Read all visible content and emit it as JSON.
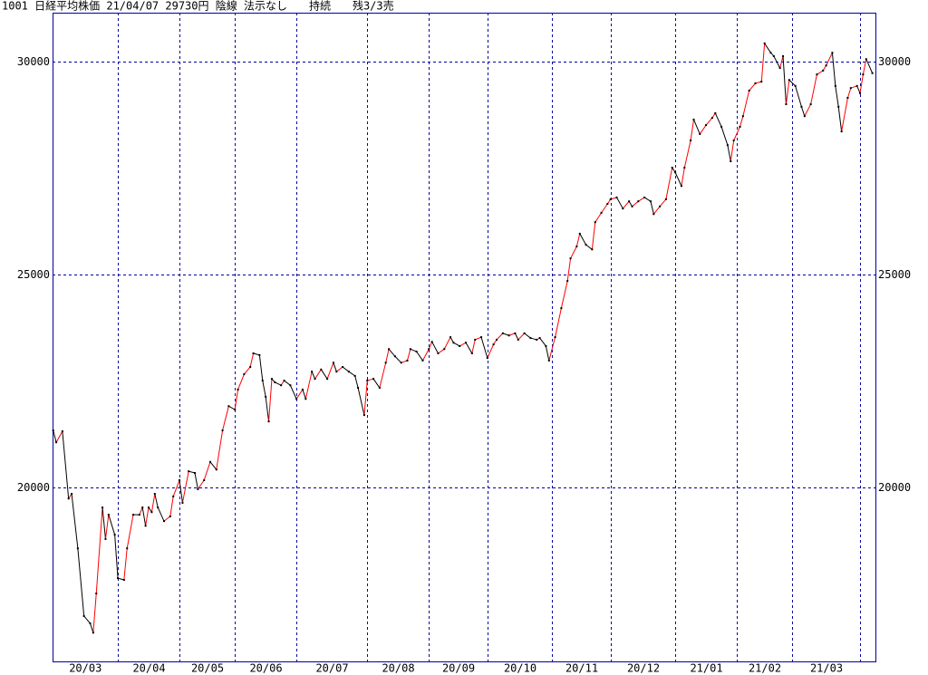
{
  "chart_data": {
    "type": "line",
    "title": "1001 日経平均株価 21/04/07 29730円 陰線 法示なし　　持続　　残3/3売",
    "x_months": [
      "20/03",
      "20/04",
      "20/05",
      "20/06",
      "20/07",
      "20/08",
      "20/09",
      "20/10",
      "20/11",
      "20/12",
      "21/01",
      "21/02",
      "21/03"
    ],
    "xlim": [
      -0.2,
      267
    ],
    "xticks": [
      21,
      41,
      59,
      79,
      102,
      122,
      141,
      162,
      181,
      202,
      222,
      240,
      262
    ],
    "ylim": [
      15915,
      31150
    ],
    "yticks": [
      20000,
      25000,
      30000
    ],
    "grid": true,
    "up_color": "#ff0000",
    "down_color": "#000000",
    "series": [
      {
        "name": "日経平均株価",
        "color": "#000000",
        "x": [
          0,
          1,
          3,
          5,
          6,
          8,
          10,
          12,
          13,
          14,
          16,
          17,
          18,
          20,
          21,
          23,
          24,
          26,
          28,
          29,
          30,
          31,
          32,
          33,
          34,
          36,
          38,
          39,
          41,
          42,
          44,
          46,
          47,
          49,
          51,
          53,
          55,
          57,
          59,
          60,
          62,
          64,
          65,
          67,
          68,
          69,
          70,
          71,
          72,
          74,
          75,
          77,
          79,
          81,
          82,
          84,
          85,
          87,
          89,
          91,
          92,
          94,
          96,
          98,
          99,
          101,
          102,
          104,
          106,
          108,
          109,
          111,
          113,
          115,
          116,
          118,
          120,
          122,
          123,
          125,
          127,
          129,
          130,
          132,
          134,
          136,
          137,
          139,
          141,
          143,
          144,
          146,
          148,
          150,
          151,
          153,
          155,
          157,
          158,
          160,
          161,
          163,
          165,
          167,
          168,
          170,
          171,
          173,
          175,
          176,
          178,
          180,
          181,
          183,
          185,
          187,
          188,
          190,
          192,
          194,
          195,
          197,
          199,
          201,
          202,
          204,
          205,
          207,
          208,
          210,
          212,
          214,
          215,
          217,
          219,
          220,
          221,
          223,
          224,
          226,
          228,
          230,
          231,
          233,
          234,
          236,
          237,
          238,
          239,
          241,
          243,
          244,
          246,
          248,
          250,
          251,
          253,
          254,
          255,
          256,
          258,
          259,
          261,
          262,
          263,
          264,
          266
        ],
        "values": [
          21340,
          21060,
          21320,
          19740,
          19850,
          18570,
          16980,
          16810,
          16590,
          17510,
          19530,
          18790,
          19360,
          18890,
          17870,
          17830,
          18570,
          19360,
          19360,
          19530,
          19100,
          19530,
          19420,
          19850,
          19530,
          19210,
          19320,
          19790,
          20170,
          19640,
          20380,
          20340,
          19960,
          20170,
          20600,
          20420,
          21340,
          21910,
          21830,
          22300,
          22660,
          22830,
          23150,
          23110,
          22510,
          22130,
          21550,
          22550,
          22470,
          22400,
          22510,
          22400,
          22080,
          22300,
          22080,
          22720,
          22550,
          22770,
          22550,
          22930,
          22720,
          22830,
          22720,
          22620,
          22340,
          21700,
          22510,
          22550,
          22340,
          22930,
          23250,
          23080,
          22930,
          22980,
          23250,
          23190,
          22980,
          23250,
          23420,
          23150,
          23250,
          23530,
          23400,
          23320,
          23400,
          23150,
          23470,
          23530,
          23040,
          23360,
          23470,
          23620,
          23570,
          23620,
          23470,
          23620,
          23510,
          23470,
          23510,
          23320,
          22980,
          23530,
          24210,
          24850,
          25380,
          25660,
          25960,
          25700,
          25590,
          26230,
          26450,
          26660,
          26770,
          26810,
          26550,
          26720,
          26600,
          26720,
          26810,
          26720,
          26420,
          26600,
          26770,
          27510,
          27400,
          27080,
          27510,
          28150,
          28640,
          28300,
          28510,
          28680,
          28790,
          28470,
          28040,
          27660,
          28150,
          28470,
          28720,
          29320,
          29490,
          29530,
          30430,
          30210,
          30130,
          29850,
          30130,
          29000,
          29570,
          29430,
          28940,
          28720,
          29000,
          29700,
          29790,
          29910,
          30210,
          29430,
          28940,
          28360,
          29150,
          29380,
          29430,
          29260,
          29700,
          30060,
          29730
        ]
      }
    ]
  }
}
